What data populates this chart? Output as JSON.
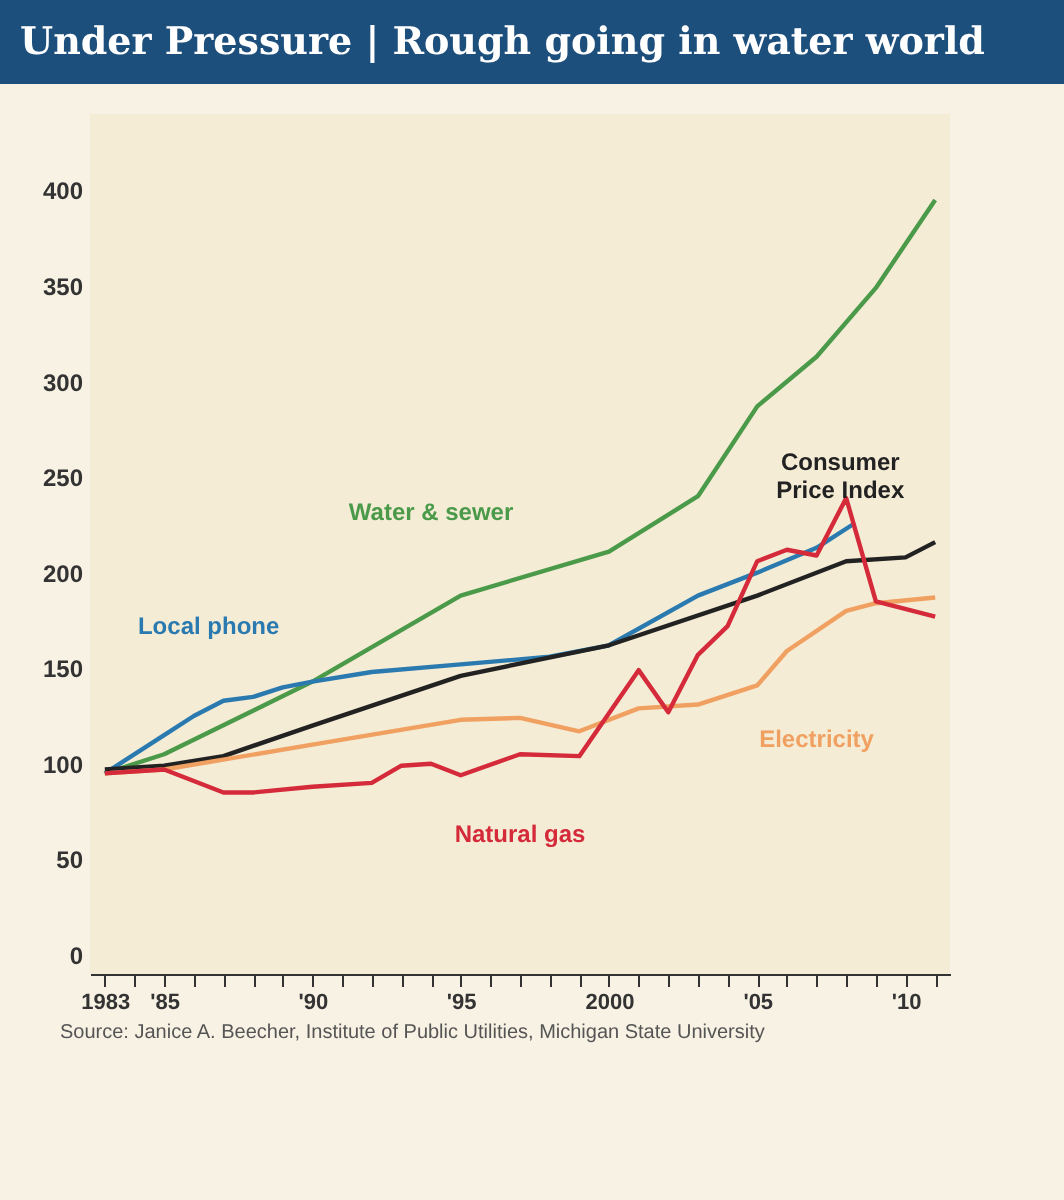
{
  "chart_data": {
    "type": "line",
    "title": "Under Pressure | Rough going in water world",
    "annotations": [
      "Source: Janice A. Beecher, Institute of Public Utilities, Michigan State University"
    ],
    "xlim": [
      1982.5,
      2011.5
    ],
    "ylim": [
      -10,
      440
    ],
    "xticks": [
      {
        "value": 1983,
        "label": "1983"
      },
      {
        "value": 1984,
        "label": null
      },
      {
        "value": 1985,
        "label": "'85"
      },
      {
        "value": 1986,
        "label": null
      },
      {
        "value": 1987,
        "label": null
      },
      {
        "value": 1988,
        "label": null
      },
      {
        "value": 1989,
        "label": null
      },
      {
        "value": 1990,
        "label": "'90"
      },
      {
        "value": 1991,
        "label": null
      },
      {
        "value": 1992,
        "label": null
      },
      {
        "value": 1993,
        "label": null
      },
      {
        "value": 1994,
        "label": null
      },
      {
        "value": 1995,
        "label": "'95"
      },
      {
        "value": 1996,
        "label": null
      },
      {
        "value": 1997,
        "label": null
      },
      {
        "value": 1998,
        "label": null
      },
      {
        "value": 1999,
        "label": null
      },
      {
        "value": 2000,
        "label": "2000"
      },
      {
        "value": 2001,
        "label": null
      },
      {
        "value": 2002,
        "label": null
      },
      {
        "value": 2003,
        "label": null
      },
      {
        "value": 2004,
        "label": null
      },
      {
        "value": 2005,
        "label": "'05"
      },
      {
        "value": 2006,
        "label": null
      },
      {
        "value": 2007,
        "label": null
      },
      {
        "value": 2008,
        "label": null
      },
      {
        "value": 2009,
        "label": null
      },
      {
        "value": 2010,
        "label": "'10"
      },
      {
        "value": 2011,
        "label": null
      }
    ],
    "yticks": [
      0,
      50,
      100,
      150,
      200,
      250,
      300,
      350,
      400
    ],
    "grid": false,
    "legend": false,
    "marker": "none",
    "line_style": "solid",
    "series": [
      {
        "name": "Water & sewer",
        "color": "#4a9a4a",
        "x": [
          1983,
          1985,
          1990,
          1995,
          2000,
          2003,
          2005,
          2007,
          2009,
          2011
        ],
        "values": [
          95,
          105,
          143,
          188,
          211,
          240,
          287,
          313,
          349,
          395
        ]
      },
      {
        "name": "Local phone",
        "color": "#2a7ab0",
        "x": [
          1983,
          1985,
          1986,
          1987,
          1988,
          1989,
          1990,
          1992,
          1995,
          1998,
          2000,
          2003,
          2005,
          2007,
          2008.3
        ],
        "values": [
          95,
          115,
          125,
          133,
          135,
          140,
          143,
          148,
          152,
          156,
          162,
          188,
          200,
          213,
          226
        ]
      },
      {
        "name": "Consumer Price Index",
        "color": "#222222",
        "x": [
          1983,
          1985,
          1987,
          1990,
          1995,
          2000,
          2005,
          2008,
          2010,
          2011
        ],
        "values": [
          97,
          99,
          104,
          120,
          146,
          162,
          188,
          206,
          208,
          216
        ]
      },
      {
        "name": "Electricity",
        "color": "#f0a060",
        "x": [
          1983,
          1985,
          1990,
          1995,
          1997,
          1999,
          2001,
          2003,
          2005,
          2006,
          2008,
          2009,
          2011
        ],
        "values": [
          95,
          97,
          110,
          123,
          124,
          117,
          129,
          131,
          141,
          159,
          180,
          184,
          187
        ]
      },
      {
        "name": "Natural gas",
        "color": "#d42a3a",
        "x": [
          1983,
          1985,
          1986,
          1987,
          1988,
          1990,
          1992,
          1993,
          1994,
          1995,
          1997,
          1999,
          2001,
          2002,
          2003,
          2004,
          2005,
          2006,
          2007,
          2008,
          2009,
          2011
        ],
        "values": [
          95,
          97,
          91,
          85,
          85,
          88,
          90,
          99,
          100,
          94,
          105,
          104,
          149,
          127,
          157,
          172,
          206,
          212,
          209,
          239,
          185,
          177
        ]
      }
    ]
  }
}
